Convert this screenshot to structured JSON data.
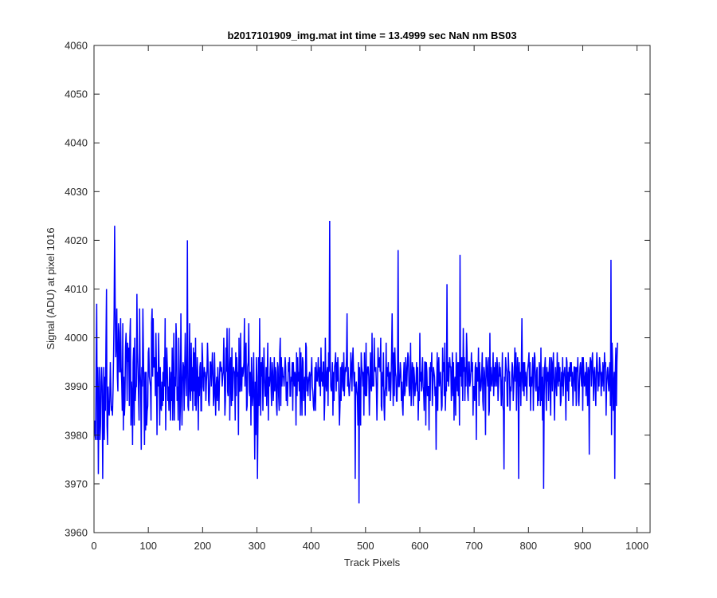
{
  "chart_data": {
    "type": "line",
    "title": "b2017101909_img.mat int time = 13.4999 sec  NaN nm BS03",
    "xlabel": "Track Pixels",
    "ylabel": "Signal (ADU) at pixel 1016",
    "xlim": [
      0,
      1024
    ],
    "ylim": [
      3960,
      4060
    ],
    "xticks": [
      0,
      100,
      200,
      300,
      400,
      500,
      600,
      700,
      800,
      900,
      1000
    ],
    "yticks": [
      3960,
      3970,
      3980,
      3990,
      4000,
      4010,
      4020,
      4030,
      4040,
      4050,
      4060
    ],
    "grid": false,
    "legend": "none",
    "series_color": "#0000ff",
    "series": [
      {
        "x_start": 1,
        "x_step": 1,
        "values": [
          3983,
          3980,
          3979,
          3996,
          4007,
          3979,
          3994,
          3972,
          3987,
          3994,
          3979,
          3982,
          3991,
          3994,
          3990,
          3971,
          3985,
          3994,
          3979,
          3992,
          3985,
          3999,
          4010,
          3982,
          3978,
          3990,
          3986,
          3984,
          3987,
          3995,
          3990,
          3985,
          3986,
          3984,
          3989,
          3996,
          4005,
          4023,
          4007,
          3996,
          3999,
          4006,
          3992,
          3989,
          4003,
          4001,
          3993,
          3993,
          4004,
          3994,
          3991,
          3985,
          4003,
          3981,
          3992,
          3984,
          3987,
          3998,
          4001,
          3996,
          3987,
          3999,
          3995,
          3998,
          3986,
          4000,
          4004,
          3982,
          3991,
          3988,
          3978,
          3995,
          3998,
          3982,
          4000,
          3987,
          3990,
          3990,
          4009,
          3997,
          3993,
          3988,
          3983,
          4006,
          3993,
          3990,
          3977,
          3994,
          3990,
          4006,
          3997,
          3988,
          3978,
          3993,
          3981,
          3993,
          3982,
          3985,
          3986,
          3997,
          3998,
          3992,
          3991,
          3990,
          3983,
          4003,
          4006,
          3992,
          4004,
          3994,
          3994,
          3996,
          3988,
          4001,
          3993,
          3980,
          3993,
          3990,
          4001,
          3992,
          3982,
          3994,
          3986,
          3985,
          3991,
          3986,
          3993,
          3987,
          3996,
          3990,
          4004,
          3981,
          3991,
          3998,
          3994,
          3987,
          3990,
          3985,
          3994,
          3990,
          3983,
          3993,
          3987,
          3998,
          3983,
          3990,
          4001,
          3983,
          3992,
          3990,
          4003,
          3999,
          3987,
          3990,
          3983,
          4000,
          3993,
          3981,
          3986,
          4005,
          3992,
          3982,
          3991,
          3995,
          3994,
          3985,
          3993,
          4001,
          3992,
          3988,
          3996,
          4020,
          3986,
          3985,
          3991,
          4003,
          3989,
          3987,
          3999,
          3989,
          3994,
          3985,
          3998,
          3989,
          3997,
          3986,
          4000,
          3985,
          3988,
          3996,
          3993,
          3981,
          3992,
          3988,
          3994,
          3995,
          3985,
          3985,
          3999,
          3996,
          3990,
          3989,
          3994,
          3992,
          3993,
          3987,
          3991,
          3993,
          3999,
          3995,
          3987,
          3986,
          3990,
          3995,
          3995,
          3990,
          3993,
          3997,
          3993,
          3986,
          3988,
          3997,
          3990,
          3984,
          3990,
          3992,
          3987,
          3994,
          3990,
          3985,
          3991,
          3995,
          3995,
          3993,
          3994,
          3990,
          3992,
          3993,
          4000,
          3993,
          3984,
          3987,
          3998,
          3993,
          4002,
          3989,
          3988,
          3995,
          4002,
          3983,
          3993,
          3996,
          3986,
          3998,
          3987,
          3990,
          3994,
          3993,
          3993,
          3983,
          3997,
          3988,
          3996,
          3992,
          3993,
          3980,
          4000,
          3989,
          3989,
          4001,
          3991,
          3989,
          3994,
          3992,
          3993,
          3995,
          4004,
          3990,
          3996,
          3999,
          3985,
          3986,
          3994,
          3995,
          4003,
          3989,
          3988,
          3993,
          3982,
          3996,
          3991,
          3986,
          3989,
          3997,
          3986,
          3975,
          3991,
          3980,
          3996,
          3992,
          3971,
          3984,
          3996,
          3986,
          4004,
          3990,
          3984,
          3995,
          3992,
          3996,
          3985,
          3991,
          3998,
          3992,
          3988,
          3988,
          3994,
          3986,
          3992,
          3999,
          3983,
          3992,
          3990,
          3992,
          3996,
          3990,
          3986,
          3995,
          3993,
          3987,
          3990,
          3996,
          3989,
          3994,
          3993,
          3986,
          3984,
          3995,
          3994,
          3988,
          3985,
          3997,
          4000,
          3986,
          3996,
          3990,
          3994,
          3992,
          3992,
          3990,
          3993,
          3996,
          3994,
          3987,
          3991,
          3986,
          3990,
          3995,
          3993,
          3996,
          3988,
          3988,
          3992,
          3991,
          3995,
          3985,
          3995,
          3992,
          3990,
          3993,
          3992,
          3982,
          3997,
          3988,
          3996,
          3991,
          3993,
          3989,
          3998,
          3984,
          3997,
          3991,
          3984,
          3996,
          3995,
          3987,
          3990,
          3992,
          3984,
          3999,
          3998,
          3989,
          3992,
          3988,
          3991,
          3992,
          3993,
          3987,
          3992,
          3993,
          3996,
          3990,
          3989,
          3986,
          3985,
          3989,
          3994,
          3985,
          3995,
          3992,
          3991,
          3993,
          3996,
          3991,
          3990,
          3994,
          3988,
          3998,
          3991,
          3993,
          3990,
          3995,
          3995,
          3983,
          3987,
          4000,
          3991,
          3989,
          3993,
          3994,
          3986,
          3997,
          3993,
          4024,
          3995,
          3990,
          3989,
          3990,
          3995,
          3984,
          3993,
          3987,
          3994,
          3995,
          3997,
          3989,
          3995,
          3991,
          3996,
          3993,
          3988,
          3982,
          3986,
          3994,
          3987,
          3994,
          3995,
          3990,
          3989,
          3997,
          3988,
          3992,
          3994,
          3993,
          3996,
          4005,
          3990,
          3994,
          3990,
          3988,
          3990,
          3992,
          3997,
          3994,
          3989,
          3995,
          3998,
          3993,
          3990,
          3993,
          3971,
          3990,
          3991,
          3989,
          3988,
          3982,
          3995,
          3966,
          3994,
          3989,
          3982,
          3997,
          3994,
          3993,
          3990,
          3993,
          3984,
          3997,
          3989,
          3988,
          3999,
          3988,
          3992,
          3994,
          3994,
          3992,
          3984,
          3989,
          3997,
          3990,
          3989,
          4001,
          3990,
          3991,
          3990,
          4000,
          3994,
          3993,
          3994,
          3990,
          3983,
          3990,
          3998,
          3994,
          3994,
          3996,
          3993,
          4000,
          3986,
          3985,
          3993,
          3990,
          3997,
          3986,
          3983,
          3989,
          3990,
          3999,
          3988,
          3994,
          3992,
          3995,
          3989,
          3992,
          3993,
          3987,
          3991,
          3997,
          4005,
          3993,
          3986,
          3997,
          3988,
          3998,
          3993,
          3992,
          3987,
          3987,
          3993,
          4018,
          3990,
          3990,
          3992,
          3995,
          3993,
          3987,
          3991,
          3986,
          3984,
          3992,
          3995,
          3988,
          3989,
          3996,
          3993,
          3990,
          3994,
          3997,
          3996,
          3990,
          3988,
          3991,
          3999,
          3986,
          3990,
          3995,
          3994,
          3986,
          3994,
          3992,
          3988,
          3990,
          3991,
          3995,
          3989,
          3994,
          3983,
          3989,
          3987,
          4001,
          3991,
          3993,
          3989,
          3993,
          3996,
          3990,
          3989,
          3985,
          3995,
          3995,
          3982,
          3995,
          3993,
          3988,
          3990,
          3990,
          3981,
          3994,
          3987,
          3995,
          3993,
          3997,
          3986,
          3990,
          3994,
          3993,
          3992,
          3988,
          3990,
          3977,
          3990,
          3997,
          3985,
          3994,
          3996,
          3990,
          3992,
          3993,
          3989,
          3985,
          3986,
          3998,
          3993,
          3995,
          3988,
          3999,
          3985,
          3990,
          3989,
          4011,
          3991,
          3995,
          3990,
          3993,
          3996,
          3994,
          3994,
          3987,
          3991,
          3997,
          3988,
          3995,
          3983,
          3991,
          3992,
          3984,
          3997,
          3993,
          3989,
          3995,
          3988,
          3995,
          3982,
          4017,
          3992,
          3996,
          3990,
          3996,
          3987,
          4002,
          3993,
          3996,
          3987,
          3994,
          3990,
          4001,
          3997,
          3989,
          3987,
          3995,
          3995,
          3990,
          3991,
          3993,
          3997,
          3993,
          3995,
          3984,
          3990,
          3990,
          3987,
          3994,
          3995,
          3979,
          3994,
          3992,
          3991,
          3998,
          3986,
          3995,
          3992,
          3989,
          3990,
          3993,
          3997,
          3987,
          3985,
          3994,
          3993,
          3990,
          3980,
          3996,
          3995,
          3992,
          3990,
          3996,
          3984,
          3985,
          4001,
          3989,
          3994,
          3991,
          3990,
          3993,
          3997,
          3988,
          3994,
          3990,
          3995,
          3992,
          3990,
          3996,
          3994,
          3987,
          3990,
          3995,
          3992,
          3994,
          3991,
          3986,
          3990,
          3997,
          3986,
          3985,
          3973,
          3992,
          3991,
          3996,
          3994,
          3993,
          3986,
          3986,
          3997,
          3993,
          3993,
          3985,
          3990,
          3989,
          3992,
          3995,
          3994,
          3987,
          3990,
          3993,
          3998,
          3991,
          3997,
          3985,
          3992,
          3996,
          3993,
          3971,
          3995,
          3990,
          3993,
          3986,
          3994,
          4004,
          3991,
          3989,
          3995,
          3988,
          3995,
          3990,
          3993,
          3991,
          3987,
          3993,
          3994,
          3995,
          3997,
          3990,
          3995,
          3985,
          3992,
          3990,
          3993,
          3996,
          3985,
          3992,
          3997,
          3996,
          3990,
          3989,
          3993,
          3994,
          3986,
          3990,
          3987,
          3995,
          3993,
          3986,
          3998,
          3987,
          3992,
          3983,
          3994,
          3969,
          3988,
          3994,
          3996,
          3990,
          3985,
          3994,
          3991,
          3993,
          3987,
          3993,
          3996,
          3989,
          3984,
          3996,
          3995,
          3989,
          3994,
          3997,
          3990,
          3983,
          3991,
          3994,
          3990,
          3988,
          3997,
          3992,
          3990,
          3995,
          3991,
          3994,
          3986,
          3987,
          3993,
          3990,
          3996,
          3988,
          3992,
          3993,
          3994,
          3990,
          3983,
          3996,
          3995,
          3989,
          3993,
          3987,
          3994,
          3991,
          3995,
          3992,
          3995,
          3990,
          3993,
          3986,
          3990,
          3994,
          3994,
          3989,
          3994,
          3986,
          3994,
          3993,
          3996,
          3987,
          3986,
          3991,
          3994,
          3995,
          3992,
          3990,
          3996,
          3985,
          3996,
          3993,
          3990,
          3991,
          3993,
          3988,
          3995,
          3991,
          3986,
          3994,
          3993,
          3976,
          3994,
          3996,
          3995,
          3990,
          3995,
          3997,
          3992,
          3987,
          3993,
          3994,
          3990,
          3986,
          3993,
          3997,
          3994,
          3989,
          3993,
          3990,
          3996,
          3994,
          3992,
          3988,
          3993,
          3990,
          3995,
          3993,
          3989,
          3997,
          3994,
          3995,
          3984,
          3990,
          3993,
          3994,
          3991,
          3989,
          3993,
          3995,
          3986,
          4016,
          3980,
          3999,
          3995,
          3985,
          3990,
          3993,
          3971,
          3993,
          3998,
          3986,
          3995,
          3999
        ]
      }
    ]
  }
}
